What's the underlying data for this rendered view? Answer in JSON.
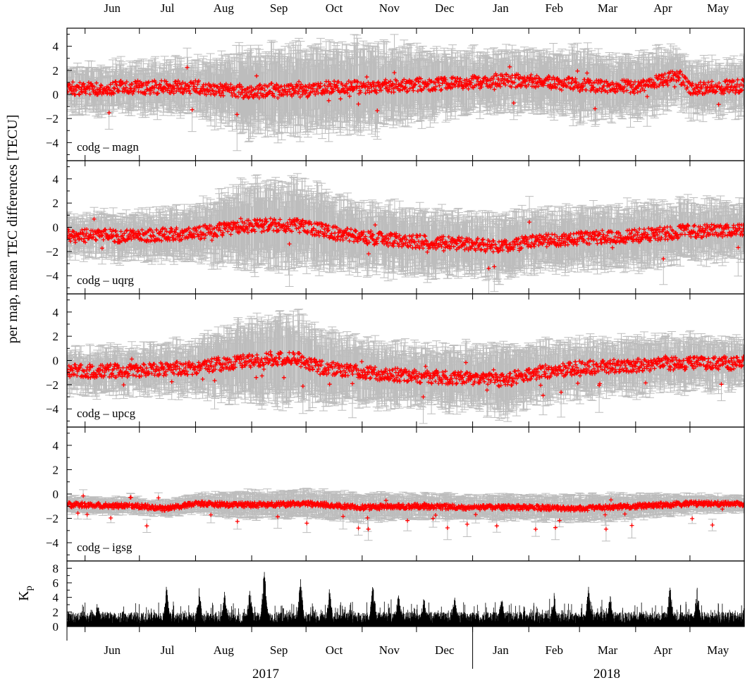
{
  "figure": {
    "ylabel": "per map, mean TEC differences [TECU]",
    "kp_label": "K",
    "kp_label_sub": "p",
    "years": [
      "2017",
      "2018"
    ],
    "months": [
      "Jun",
      "Jul",
      "Aug",
      "Sep",
      "Oct",
      "Nov",
      "Dec",
      "Jan",
      "Feb",
      "Mar",
      "Apr",
      "May"
    ]
  },
  "chart_data": [
    {
      "type": "scatter",
      "panel_label": "codg – magn",
      "x_range": [
        "2017-05-22",
        "2018-05-31"
      ],
      "ylim": [
        -5.5,
        5.5
      ],
      "yticks": [
        -4,
        -2,
        0,
        2,
        4
      ],
      "marker_color": "#ff0000",
      "errorbar_color": "#bdbdbd",
      "series": [
        {
          "x": [
            "2017-06-01",
            "2017-07-01",
            "2017-08-01",
            "2017-08-25",
            "2017-09-01",
            "2017-09-15",
            "2017-10-01",
            "2017-10-15",
            "2017-11-01",
            "2017-12-01",
            "2018-01-01",
            "2018-01-15",
            "2018-02-01",
            "2018-03-01",
            "2018-04-01",
            "2018-04-25",
            "2018-05-01",
            "2018-05-31"
          ],
          "y": [
            0.5,
            0.6,
            0.6,
            0.3,
            0.2,
            0.4,
            0.3,
            0.6,
            0.6,
            0.8,
            1.0,
            1.2,
            1.1,
            0.8,
            0.6,
            1.5,
            0.5,
            0.7
          ],
          "error": [
            1.5,
            1.6,
            1.8,
            2.8,
            3.0,
            3.0,
            3.0,
            3.0,
            3.0,
            2.5,
            2.0,
            2.0,
            2.0,
            2.4,
            2.2,
            1.9,
            1.8,
            1.7
          ]
        }
      ]
    },
    {
      "type": "scatter",
      "panel_label": "codg – uqrg",
      "x_range": [
        "2017-05-22",
        "2018-05-31"
      ],
      "ylim": [
        -5.5,
        5.5
      ],
      "yticks": [
        -4,
        -2,
        0,
        2,
        4
      ],
      "marker_color": "#ff0000",
      "errorbar_color": "#bdbdbd",
      "series": [
        {
          "x": [
            "2017-06-01",
            "2017-07-01",
            "2017-08-01",
            "2017-08-25",
            "2017-09-10",
            "2017-09-25",
            "2017-10-15",
            "2017-11-01",
            "2017-12-01",
            "2018-01-01",
            "2018-01-20",
            "2018-02-01",
            "2018-03-01",
            "2018-04-01",
            "2018-05-01",
            "2018-05-31"
          ],
          "y": [
            -0.7,
            -0.7,
            -0.5,
            0.0,
            0.2,
            0.2,
            -0.4,
            -0.8,
            -1.2,
            -1.4,
            -1.6,
            -1.2,
            -0.9,
            -0.7,
            -0.3,
            -0.3
          ],
          "error": [
            1.4,
            1.5,
            1.8,
            2.8,
            3.0,
            3.0,
            2.5,
            2.3,
            2.2,
            2.0,
            2.2,
            2.0,
            2.0,
            2.1,
            2.0,
            1.8
          ]
        }
      ]
    },
    {
      "type": "scatter",
      "panel_label": "codg – upcg",
      "x_range": [
        "2017-05-22",
        "2018-05-31"
      ],
      "ylim": [
        -5.5,
        5.5
      ],
      "yticks": [
        -4,
        -2,
        0,
        2,
        4
      ],
      "marker_color": "#ff0000",
      "errorbar_color": "#bdbdbd",
      "series": [
        {
          "x": [
            "2017-06-01",
            "2017-07-01",
            "2017-08-01",
            "2017-08-25",
            "2017-09-10",
            "2017-09-25",
            "2017-10-10",
            "2017-11-01",
            "2017-12-01",
            "2018-01-01",
            "2018-01-20",
            "2018-02-01",
            "2018-03-01",
            "2018-04-01",
            "2018-05-01",
            "2018-05-31"
          ],
          "y": [
            -0.9,
            -0.8,
            -0.6,
            -0.1,
            0.1,
            0.2,
            -0.6,
            -1.0,
            -1.3,
            -1.5,
            -1.6,
            -1.1,
            -0.6,
            -0.4,
            -0.2,
            -0.2
          ],
          "error": [
            1.4,
            1.5,
            1.8,
            2.6,
            3.0,
            3.0,
            2.4,
            2.2,
            2.0,
            2.0,
            2.4,
            1.9,
            1.8,
            1.8,
            1.7,
            1.6
          ]
        }
      ]
    },
    {
      "type": "scatter",
      "panel_label": "codg – igsg",
      "x_range": [
        "2017-05-22",
        "2018-05-31"
      ],
      "ylim": [
        -5.5,
        5.5
      ],
      "yticks": [
        -4,
        -2,
        0,
        2,
        4
      ],
      "marker_color": "#ff0000",
      "errorbar_color": "#bdbdbd",
      "series": [
        {
          "x": [
            "2017-06-01",
            "2017-07-01",
            "2017-07-15",
            "2017-08-01",
            "2017-09-01",
            "2017-10-01",
            "2017-11-01",
            "2017-12-01",
            "2018-01-01",
            "2018-02-01",
            "2018-03-01",
            "2018-04-01",
            "2018-05-01",
            "2018-05-31"
          ],
          "y": [
            -0.9,
            -1.0,
            -1.2,
            -0.8,
            -0.9,
            -0.8,
            -1.1,
            -1.0,
            -1.1,
            -1.1,
            -1.2,
            -1.0,
            -0.8,
            -0.8
          ],
          "error": [
            0.5,
            0.5,
            0.5,
            0.6,
            0.9,
            0.9,
            0.9,
            0.8,
            0.8,
            0.8,
            0.9,
            0.8,
            0.6,
            0.5
          ]
        }
      ]
    },
    {
      "type": "bar",
      "x_range": [
        "2017-05-22",
        "2018-05-31"
      ],
      "ylim": [
        0,
        9
      ],
      "yticks": [
        0,
        2,
        4,
        6,
        8
      ],
      "color": "#000000",
      "peaks": {
        "x": [
          "2017-06-08",
          "2017-07-16",
          "2017-08-03",
          "2017-08-17",
          "2017-08-31",
          "2017-09-08",
          "2017-09-28",
          "2017-10-14",
          "2017-11-07",
          "2017-11-21",
          "2017-12-05",
          "2017-12-22",
          "2018-01-17",
          "2018-02-15",
          "2018-03-06",
          "2018-03-18",
          "2018-04-20",
          "2018-05-05"
        ],
        "y": [
          3.8,
          6.0,
          5.3,
          4.8,
          5.6,
          8.3,
          6.7,
          5.5,
          6.3,
          4.9,
          4.6,
          4.3,
          4.4,
          4.8,
          5.5,
          4.8,
          6.0,
          5.4
        ]
      }
    }
  ]
}
